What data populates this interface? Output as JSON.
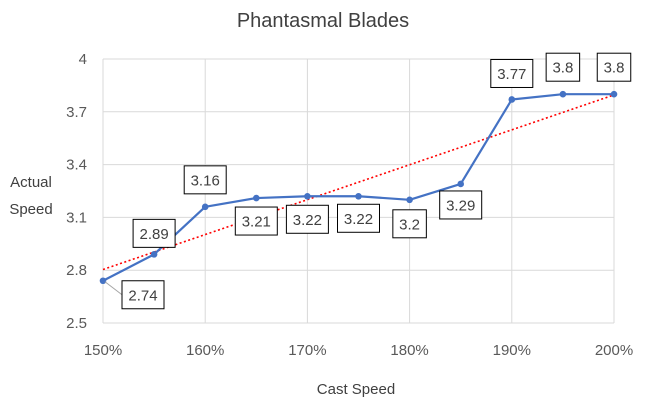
{
  "chart_data": {
    "type": "line",
    "title": "Phantasmal Blades",
    "xlabel": "Cast Speed",
    "ylabel_lines": [
      "Actual",
      "Speed"
    ],
    "x": [
      150,
      155,
      160,
      165,
      170,
      175,
      180,
      185,
      190,
      195,
      200
    ],
    "x_ticks": [
      150,
      160,
      170,
      180,
      190,
      200
    ],
    "x_tick_labels": [
      "150%",
      "160%",
      "170%",
      "180%",
      "190%",
      "200%"
    ],
    "xlim": [
      150,
      200
    ],
    "y_ticks": [
      2.5,
      2.8,
      3.1,
      3.4,
      3.7,
      4
    ],
    "y_tick_labels": [
      "2.5",
      "2.8",
      "3.1",
      "3.4",
      "3.7",
      "4"
    ],
    "ylim": [
      2.5,
      4
    ],
    "grid": true,
    "series": [
      {
        "values": [
          2.74,
          2.89,
          3.16,
          3.21,
          3.22,
          3.22,
          3.2,
          3.29,
          3.77,
          3.8,
          3.8
        ],
        "data_labels": [
          "2.74",
          "2.89",
          "3.16",
          "3.21",
          "3.22",
          "3.22",
          "3.2",
          "3.29",
          "3.77",
          "3.8",
          "3.8"
        ],
        "color": "#4472c4"
      }
    ],
    "trendline": {
      "type": "linear",
      "color": "#ff0000",
      "style": "dotted"
    }
  }
}
